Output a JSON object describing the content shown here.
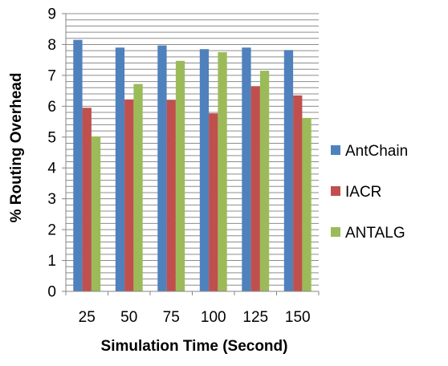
{
  "chart_data": {
    "type": "bar",
    "xlabel": "Simulation Time (Second)",
    "ylabel": "% Routing Overhead",
    "categories": [
      "25",
      "50",
      "75",
      "100",
      "125",
      "150"
    ],
    "ylim": [
      0,
      9
    ],
    "yticks": [
      "0",
      "1",
      "2",
      "3",
      "4",
      "5",
      "6",
      "7",
      "8",
      "9"
    ],
    "grid": true,
    "legend_position": "right",
    "series": [
      {
        "name": "AntChain",
        "color": "#4F81BD",
        "values": [
          8.15,
          7.9,
          7.97,
          7.85,
          7.9,
          7.82
        ]
      },
      {
        "name": "IACR",
        "color": "#C0504D",
        "values": [
          5.95,
          6.22,
          6.2,
          5.77,
          6.65,
          6.35
        ]
      },
      {
        "name": "ANTALG",
        "color": "#9BBB59",
        "values": [
          5.02,
          6.72,
          7.47,
          7.75,
          7.15,
          5.62
        ]
      }
    ]
  }
}
